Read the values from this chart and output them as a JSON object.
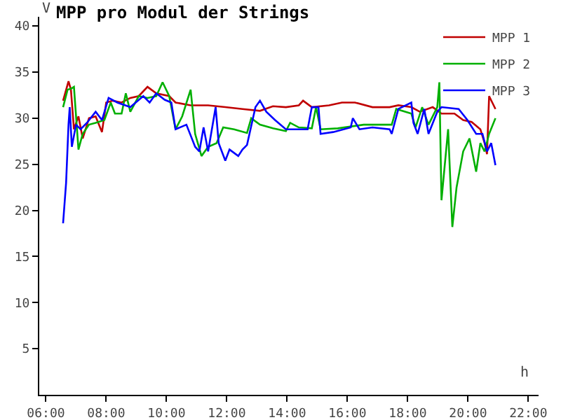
{
  "chart_data": {
    "type": "line",
    "title": "MPP pro Modul der Strings",
    "xlabel": "h",
    "ylabel": "V",
    "xlim": [
      5.78,
      22.34
    ],
    "ylim": [
      0,
      41
    ],
    "xticks": [
      {
        "value": 6,
        "label": "06:00"
      },
      {
        "value": 8,
        "label": "08:00"
      },
      {
        "value": 10,
        "label": "10:00"
      },
      {
        "value": 12,
        "label": "12:00"
      },
      {
        "value": 14,
        "label": "14:00"
      },
      {
        "value": 16,
        "label": "16:00"
      },
      {
        "value": 18,
        "label": "18:00"
      },
      {
        "value": 20,
        "label": "20:00"
      },
      {
        "value": 22,
        "label": "22:00"
      }
    ],
    "yticks": [
      5,
      10,
      15,
      20,
      25,
      30,
      35,
      40
    ],
    "grid": false,
    "legend": "top right",
    "marker": "none",
    "line_style": "solid",
    "series": [
      {
        "name": "MPP 1",
        "color": "#c00000",
        "x": [
          6.57,
          6.75,
          6.83,
          6.93,
          7.08,
          7.22,
          7.43,
          7.65,
          7.86,
          8.0,
          8.22,
          8.51,
          8.8,
          9.08,
          9.37,
          9.66,
          10.09,
          10.3,
          10.8,
          11.38,
          11.95,
          12.52,
          13.1,
          13.53,
          13.96,
          14.39,
          14.53,
          14.82,
          15.39,
          15.82,
          16.25,
          16.83,
          17.4,
          17.69,
          18.12,
          18.4,
          18.83,
          19.12,
          19.55,
          19.84,
          20.12,
          20.41,
          20.55,
          20.63,
          20.7,
          20.91
        ],
        "values": [
          31.9,
          34.0,
          33.1,
          28.8,
          30.2,
          27.8,
          30.0,
          30.2,
          28.5,
          31.7,
          31.9,
          31.7,
          32.2,
          32.4,
          33.4,
          32.7,
          32.4,
          31.7,
          31.4,
          31.4,
          31.2,
          31.0,
          30.8,
          31.3,
          31.2,
          31.4,
          31.9,
          31.2,
          31.4,
          31.7,
          31.7,
          31.2,
          31.2,
          31.4,
          31.2,
          30.7,
          31.2,
          30.5,
          30.5,
          29.8,
          29.6,
          28.8,
          27.3,
          26.1,
          32.4,
          31.0
        ]
      },
      {
        "name": "MPP 2",
        "color": "#00b000",
        "x": [
          6.57,
          6.72,
          6.83,
          6.93,
          7.0,
          7.08,
          7.22,
          7.43,
          7.65,
          7.94,
          8.15,
          8.29,
          8.51,
          8.65,
          8.8,
          9.08,
          9.37,
          9.66,
          9.87,
          10.09,
          10.3,
          10.52,
          10.8,
          10.95,
          11.16,
          11.38,
          11.66,
          11.88,
          12.24,
          12.67,
          12.81,
          13.1,
          13.53,
          13.96,
          14.1,
          14.39,
          14.82,
          14.96,
          15.11,
          15.68,
          16.54,
          17.47,
          17.62,
          18.12,
          18.26,
          18.48,
          18.69,
          18.98,
          19.05,
          19.12,
          19.34,
          19.48,
          19.62,
          19.84,
          20.05,
          20.27,
          20.41,
          20.55,
          20.7,
          20.91
        ],
        "values": [
          31.2,
          33.1,
          33.2,
          33.4,
          30.2,
          26.6,
          28.3,
          29.3,
          29.5,
          29.8,
          31.7,
          30.5,
          30.5,
          32.7,
          30.7,
          32.4,
          32.2,
          32.4,
          33.9,
          32.4,
          28.8,
          30.2,
          33.1,
          28.3,
          25.9,
          26.9,
          27.3,
          29.0,
          28.8,
          28.4,
          30.0,
          29.3,
          28.9,
          28.6,
          29.5,
          29.0,
          28.9,
          31.2,
          28.8,
          28.9,
          29.3,
          29.3,
          31.0,
          30.5,
          29.0,
          31.2,
          29.3,
          31.2,
          33.9,
          21.1,
          28.8,
          18.2,
          22.5,
          26.4,
          27.8,
          24.2,
          27.3,
          26.4,
          28.3,
          30.0
        ]
      },
      {
        "name": "MPP 3",
        "color": "#0000ff",
        "x": [
          6.57,
          6.67,
          6.75,
          6.79,
          6.86,
          7.0,
          7.15,
          7.36,
          7.65,
          7.86,
          8.08,
          8.37,
          8.8,
          9.23,
          9.44,
          9.66,
          9.94,
          10.16,
          10.3,
          10.66,
          10.95,
          11.09,
          11.23,
          11.38,
          11.63,
          11.73,
          11.95,
          12.09,
          12.38,
          12.52,
          12.67,
          12.95,
          13.1,
          13.31,
          13.6,
          13.96,
          14.68,
          14.82,
          15.04,
          15.11,
          15.53,
          16.11,
          16.18,
          16.4,
          16.83,
          17.4,
          17.47,
          17.69,
          18.12,
          18.19,
          18.33,
          18.55,
          18.69,
          18.98,
          19.12,
          19.69,
          19.98,
          20.27,
          20.48,
          20.63,
          20.77,
          20.91
        ],
        "values": [
          18.6,
          23.0,
          29.3,
          31.2,
          26.9,
          29.3,
          28.8,
          29.5,
          30.7,
          29.8,
          32.2,
          31.7,
          31.2,
          32.4,
          31.7,
          32.7,
          32.0,
          31.7,
          28.8,
          29.3,
          26.9,
          26.4,
          29.0,
          26.4,
          31.2,
          27.3,
          25.4,
          26.6,
          25.9,
          26.6,
          27.1,
          31.2,
          31.9,
          30.7,
          29.8,
          28.8,
          28.8,
          31.2,
          31.2,
          28.3,
          28.5,
          29.0,
          30.0,
          28.8,
          29.0,
          28.8,
          28.3,
          31.0,
          31.7,
          29.5,
          28.3,
          31.0,
          28.3,
          30.7,
          31.2,
          31.0,
          29.8,
          28.3,
          28.3,
          26.4,
          27.3,
          24.9
        ]
      }
    ]
  }
}
